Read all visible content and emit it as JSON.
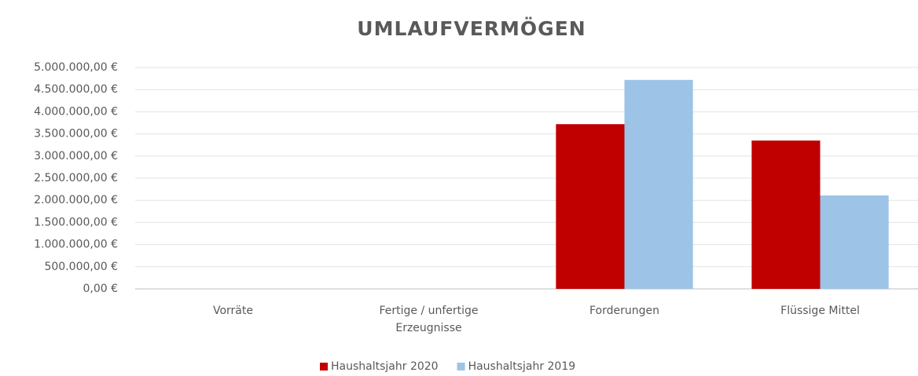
{
  "chart_data": {
    "type": "bar",
    "title": "UMLAUFVERMÖGEN",
    "categories": [
      "Vorräte",
      "Fertige / unfertige Erzeugnisse",
      "Forderungen",
      "Flüssige Mittel"
    ],
    "series": [
      {
        "name": "Haushaltsjahr 2020",
        "color": "#c00000",
        "values": [
          0,
          0,
          3720000,
          3350000
        ]
      },
      {
        "name": "Haushaltsjahr 2019",
        "color": "#9dc3e6",
        "values": [
          0,
          0,
          4720000,
          2110000
        ]
      }
    ],
    "ylim": [
      0,
      5000000
    ],
    "yticks": [
      {
        "value": 0,
        "label": "0,00 €"
      },
      {
        "value": 500000,
        "label": "500.000,00 €"
      },
      {
        "value": 1000000,
        "label": "1.000.000,00 €"
      },
      {
        "value": 1500000,
        "label": "1.500.000,00 €"
      },
      {
        "value": 2000000,
        "label": "2.000.000,00 €"
      },
      {
        "value": 2500000,
        "label": "2.500.000,00 €"
      },
      {
        "value": 3000000,
        "label": "3.000.000,00 €"
      },
      {
        "value": 3500000,
        "label": "3.500.000,00 €"
      },
      {
        "value": 4000000,
        "label": "4.000.000,00 €"
      },
      {
        "value": 4500000,
        "label": "4.500.000,00 €"
      },
      {
        "value": 5000000,
        "label": "5.000.000,00 €"
      }
    ],
    "grid": true,
    "legend": "bottom"
  }
}
